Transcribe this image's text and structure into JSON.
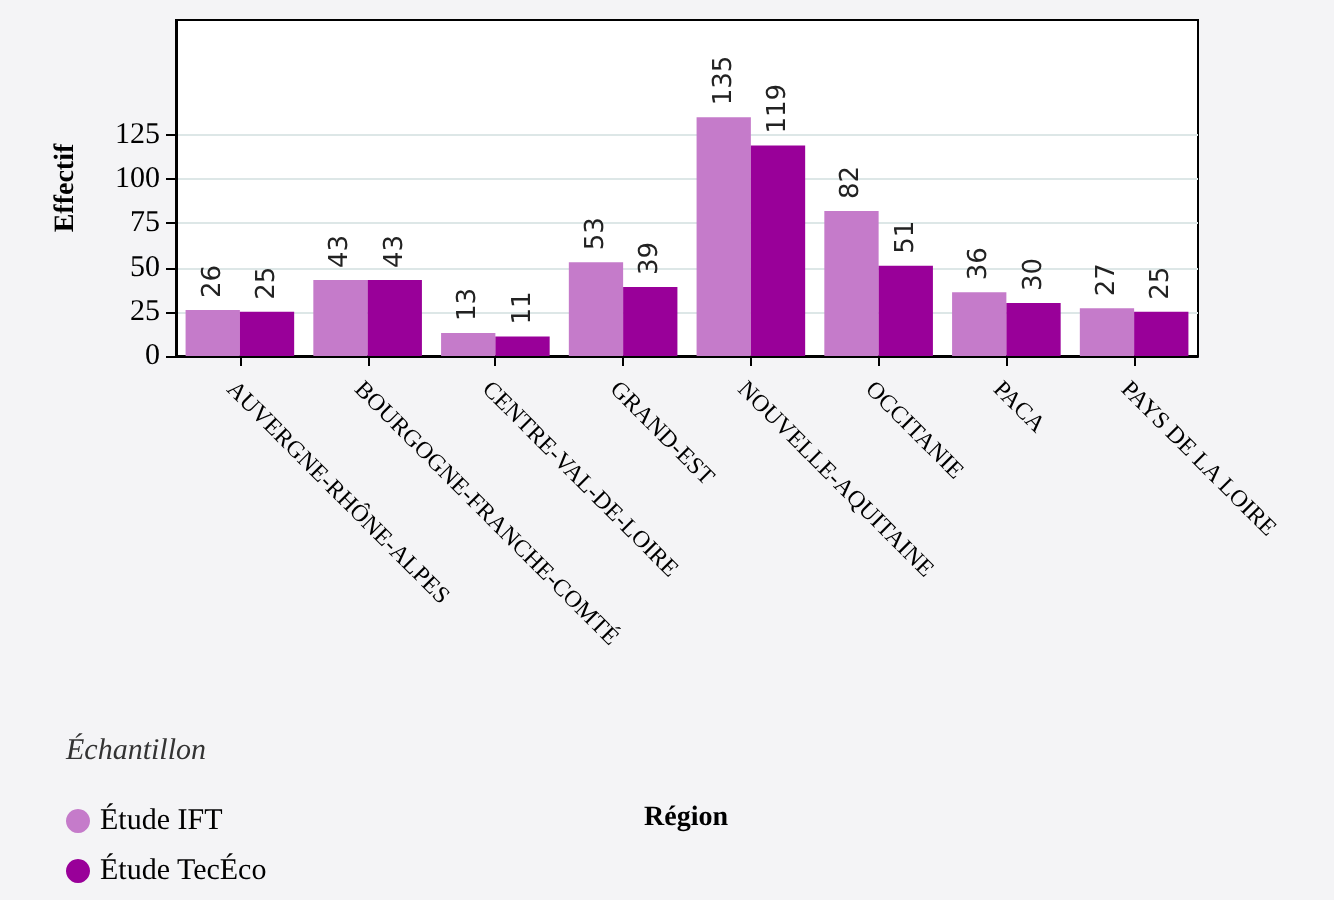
{
  "chart_data": {
    "type": "bar",
    "ylabel": "Effectif",
    "legend_title": "Échantillon",
    "annotations": [
      "Région"
    ],
    "categories": [
      "AUVERGNE-RHÔNE-ALPES",
      "BOURGOGNE-FRANCHE-COMTÉ",
      "CENTRE-VAL-DE-LOIRE",
      "GRAND-EST",
      "NOUVELLE-AQUITAINE",
      "OCCITANIE",
      "PACA",
      "PAYS DE LA LOIRE"
    ],
    "series": [
      {
        "name": "Étude IFT",
        "color": "#c57bca",
        "values": [
          26,
          43,
          13,
          53,
          135,
          82,
          36,
          27
        ]
      },
      {
        "name": "Étude TecÉco",
        "color": "#990099",
        "values": [
          25,
          43,
          11,
          39,
          119,
          51,
          30,
          25
        ]
      }
    ],
    "ylim": [
      0,
      190
    ],
    "yticks": [
      0,
      25,
      50,
      75,
      100,
      125
    ],
    "grid": "y",
    "legend": "bottom left",
    "data_labels": true
  }
}
